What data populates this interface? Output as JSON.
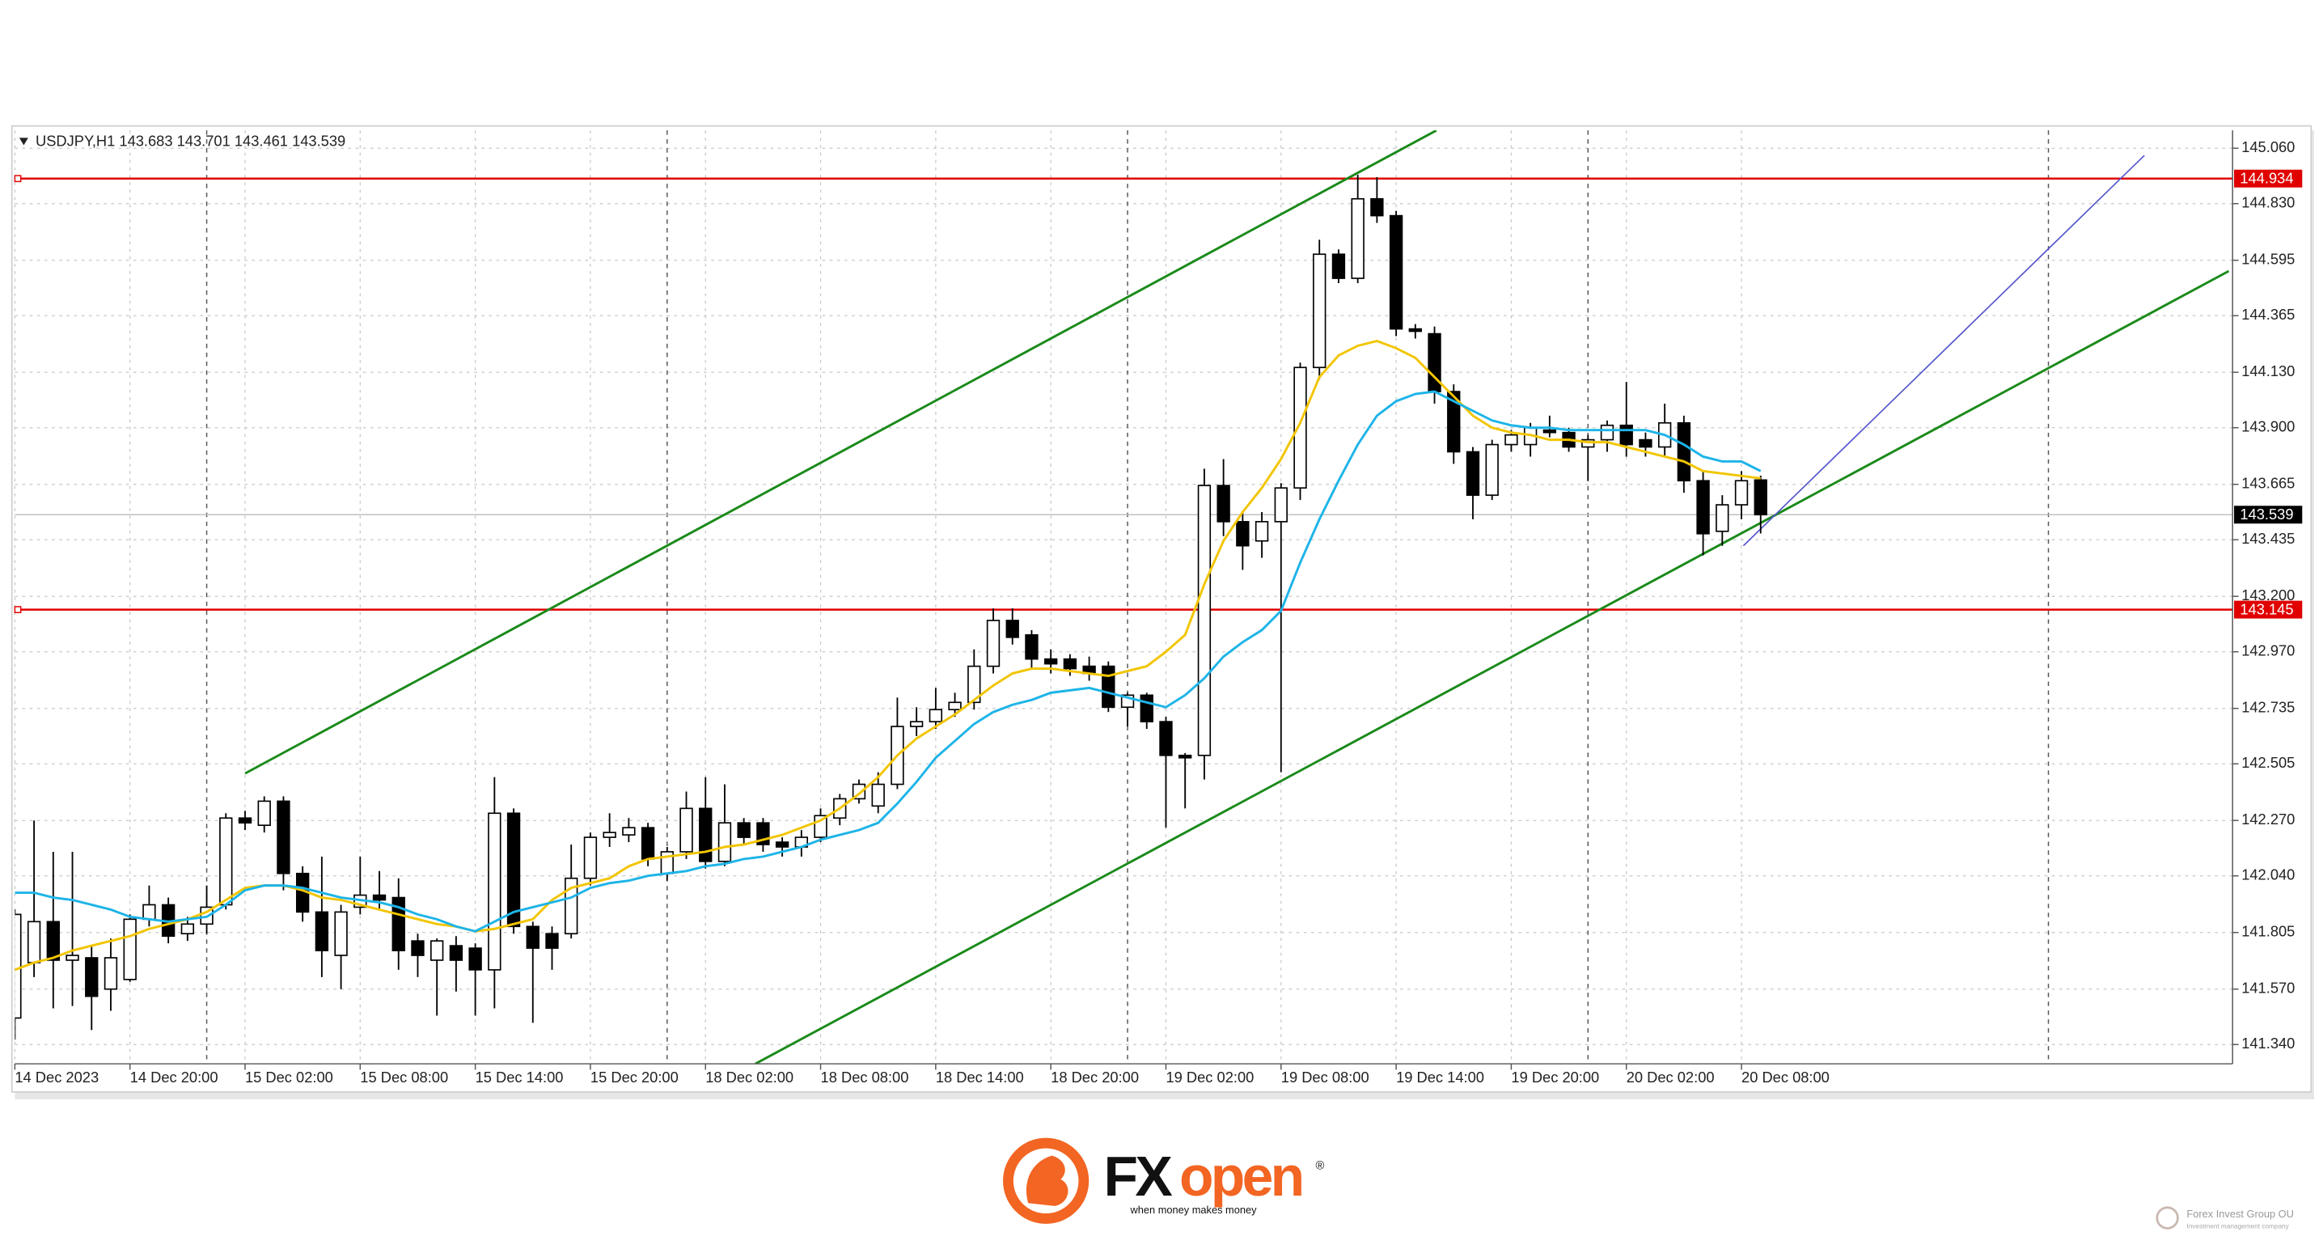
{
  "chart_data": {
    "type": "candlestick",
    "ohlc_header": "USDJPY,H1  143.683 143.701 143.461 143.539",
    "categories": [
      "14 Dec 2023",
      null,
      null,
      null,
      null,
      null,
      "14 Dec 20:00",
      null,
      null,
      null,
      null,
      null,
      "15 Dec 02:00",
      null,
      null,
      null,
      null,
      null,
      "15 Dec 08:00",
      null,
      null,
      null,
      null,
      null,
      "15 Dec 14:00",
      null,
      null,
      null,
      null,
      null,
      "15 Dec 20:00",
      null,
      null,
      null,
      null,
      null,
      "18 Dec 02:00",
      null,
      null,
      null,
      null,
      null,
      "18 Dec 08:00",
      null,
      null,
      null,
      null,
      null,
      "18 Dec 14:00",
      null,
      null,
      null,
      null,
      null,
      "18 Dec 20:00",
      null,
      null,
      null,
      null,
      null,
      "19 Dec 02:00",
      null,
      null,
      null,
      null,
      null,
      "19 Dec 08:00",
      null,
      null,
      null,
      null,
      null,
      "19 Dec 14:00",
      null,
      null,
      null,
      null,
      null,
      "19 Dec 20:00",
      null,
      null,
      null,
      null,
      null,
      "20 Dec 02:00",
      null,
      null,
      null,
      null,
      null,
      "20 Dec 08:00",
      null
    ],
    "open": [
      141.45,
      141.68,
      141.85,
      141.69,
      141.7,
      141.57,
      141.61,
      141.86,
      141.92,
      141.8,
      141.84,
      141.92,
      142.28,
      142.25,
      142.35,
      142.05,
      141.89,
      141.71,
      141.91,
      141.96,
      141.95,
      141.77,
      141.69,
      141.75,
      141.74,
      141.65,
      142.3,
      141.83,
      141.8,
      141.8,
      142.03,
      142.2,
      142.21,
      142.24,
      142.05,
      142.14,
      142.32,
      142.1,
      142.26,
      142.26,
      142.18,
      142.16,
      142.2,
      142.28,
      142.36,
      142.33,
      142.42,
      142.66,
      142.68,
      142.73,
      142.76,
      142.91,
      143.1,
      143.04,
      142.94,
      142.94,
      142.91,
      142.91,
      142.74,
      142.79,
      142.68,
      142.54,
      142.54,
      143.66,
      143.51,
      143.43,
      143.51,
      143.65,
      144.15,
      144.62,
      144.52,
      144.85,
      144.78,
      144.31,
      144.29,
      144.05,
      143.8,
      143.62,
      143.83,
      143.83,
      143.89,
      143.88,
      143.82,
      143.85,
      143.91,
      143.85,
      143.82,
      143.92,
      143.68,
      143.47,
      143.58,
      143.683
    ],
    "high": [
      141.9,
      142.27,
      142.14,
      142.14,
      141.75,
      141.78,
      141.88,
      142.0,
      141.95,
      141.87,
      142.0,
      142.3,
      142.31,
      142.37,
      142.37,
      142.08,
      142.12,
      141.92,
      142.12,
      142.06,
      142.03,
      141.8,
      141.78,
      141.79,
      141.76,
      142.45,
      142.32,
      141.85,
      141.83,
      142.17,
      142.22,
      142.3,
      142.28,
      142.26,
      142.16,
      142.39,
      142.45,
      142.42,
      142.28,
      142.28,
      142.2,
      142.23,
      142.32,
      142.38,
      142.44,
      142.47,
      142.78,
      142.74,
      142.82,
      142.8,
      142.98,
      143.15,
      143.15,
      143.06,
      142.98,
      142.96,
      142.95,
      142.93,
      142.8,
      142.8,
      142.7,
      142.55,
      143.73,
      143.77,
      143.55,
      143.55,
      143.67,
      144.17,
      144.68,
      144.64,
      144.95,
      144.94,
      144.8,
      144.33,
      144.32,
      144.08,
      143.82,
      143.85,
      143.89,
      143.92,
      143.95,
      143.9,
      143.87,
      143.93,
      144.09,
      143.88,
      144.0,
      143.95,
      143.72,
      143.62,
      143.72,
      143.701
    ],
    "low": [
      141.36,
      141.62,
      141.49,
      141.5,
      141.4,
      141.48,
      141.6,
      141.83,
      141.76,
      141.77,
      141.8,
      141.9,
      142.23,
      142.22,
      141.98,
      141.85,
      141.62,
      141.57,
      141.88,
      141.9,
      141.65,
      141.62,
      141.46,
      141.56,
      141.46,
      141.49,
      141.8,
      141.43,
      141.65,
      141.78,
      142.0,
      142.16,
      142.18,
      142.08,
      142.02,
      142.11,
      142.07,
      142.08,
      142.17,
      142.14,
      142.12,
      142.12,
      142.18,
      142.25,
      142.34,
      142.3,
      142.4,
      142.62,
      142.65,
      142.7,
      142.73,
      142.88,
      143.0,
      142.9,
      142.88,
      142.87,
      142.85,
      142.72,
      142.66,
      142.65,
      142.24,
      142.32,
      142.44,
      143.45,
      143.31,
      143.36,
      142.47,
      143.6,
      144.1,
      144.5,
      144.5,
      144.75,
      144.28,
      144.27,
      144.0,
      143.75,
      143.52,
      143.6,
      143.8,
      143.78,
      143.86,
      143.8,
      143.68,
      143.8,
      143.78,
      143.78,
      143.78,
      143.63,
      143.37,
      143.41,
      143.52,
      143.461
    ],
    "close": [
      141.88,
      141.85,
      141.69,
      141.71,
      141.54,
      141.7,
      141.86,
      141.92,
      141.79,
      141.84,
      141.91,
      142.28,
      142.26,
      142.35,
      142.05,
      141.89,
      141.73,
      141.89,
      141.96,
      141.94,
      141.73,
      141.71,
      141.77,
      141.69,
      141.65,
      142.3,
      141.83,
      141.74,
      141.74,
      142.03,
      142.2,
      142.22,
      142.24,
      142.11,
      142.14,
      142.32,
      142.1,
      142.26,
      142.2,
      142.17,
      142.16,
      142.2,
      142.29,
      142.36,
      142.42,
      142.42,
      142.66,
      142.68,
      142.73,
      142.76,
      142.91,
      143.1,
      143.03,
      142.94,
      142.92,
      142.9,
      142.88,
      142.74,
      142.79,
      142.68,
      142.54,
      142.53,
      143.66,
      143.51,
      143.41,
      143.51,
      143.65,
      144.15,
      144.62,
      144.52,
      144.85,
      144.78,
      144.31,
      144.3,
      144.05,
      143.8,
      143.62,
      143.83,
      143.87,
      143.9,
      143.88,
      143.82,
      143.85,
      143.91,
      143.83,
      143.82,
      143.92,
      143.68,
      143.46,
      143.58,
      143.68,
      143.539
    ],
    "up_color": "#ffffff",
    "down_color": "#000000",
    "moving_averages": [
      {
        "color": "#f2c500",
        "values": [
          141.65,
          141.68,
          141.7,
          141.73,
          141.75,
          141.77,
          141.79,
          141.82,
          141.84,
          141.86,
          141.89,
          141.94,
          141.99,
          142.0,
          142.0,
          141.98,
          141.95,
          141.94,
          141.92,
          141.9,
          141.88,
          141.86,
          141.84,
          141.83,
          141.81,
          141.82,
          141.84,
          141.86,
          141.94,
          141.99,
          142.01,
          142.03,
          142.08,
          142.11,
          142.12,
          142.13,
          142.14,
          142.16,
          142.17,
          142.19,
          142.21,
          142.24,
          142.27,
          142.32,
          142.38,
          142.45,
          142.54,
          142.61,
          142.66,
          142.71,
          142.77,
          142.83,
          142.88,
          142.9,
          142.9,
          142.89,
          142.88,
          142.87,
          142.89,
          142.91,
          142.97,
          143.04,
          143.25,
          143.43,
          143.55,
          143.65,
          143.77,
          143.92,
          144.11,
          144.2,
          144.24,
          144.26,
          144.23,
          144.19,
          144.11,
          144.03,
          143.95,
          143.9,
          143.88,
          143.87,
          143.85,
          143.85,
          143.84,
          143.84,
          143.82,
          143.8,
          143.78,
          143.76,
          143.72,
          143.71,
          143.7,
          143.69
        ]
      },
      {
        "color": "#1db4e8",
        "values": [
          141.97,
          141.97,
          141.95,
          141.94,
          141.92,
          141.9,
          141.87,
          141.86,
          141.85,
          141.86,
          141.87,
          141.92,
          141.98,
          142.0,
          142.0,
          141.99,
          141.97,
          141.95,
          141.94,
          141.93,
          141.91,
          141.88,
          141.86,
          141.83,
          141.81,
          141.85,
          141.89,
          141.91,
          141.93,
          141.95,
          141.99,
          142.01,
          142.02,
          142.04,
          142.05,
          142.06,
          142.08,
          142.09,
          142.11,
          142.12,
          142.14,
          142.16,
          142.19,
          142.21,
          142.23,
          142.26,
          142.34,
          142.43,
          142.53,
          142.6,
          142.67,
          142.72,
          142.75,
          142.77,
          142.8,
          142.81,
          142.82,
          142.8,
          142.78,
          142.76,
          142.74,
          142.79,
          142.86,
          142.95,
          143.01,
          143.06,
          143.14,
          143.34,
          143.52,
          143.68,
          143.83,
          143.95,
          144.01,
          144.04,
          144.05,
          144.01,
          143.97,
          143.93,
          143.91,
          143.9,
          143.9,
          143.89,
          143.89,
          143.89,
          143.89,
          143.89,
          143.87,
          143.83,
          143.78,
          143.76,
          143.76,
          143.72
        ]
      }
    ],
    "trend_lines": [
      {
        "color": "#1a8a1a",
        "x": [
          12,
          74.1
        ],
        "y": [
          142.465,
          145.134
        ]
      },
      {
        "color": "#1a8a1a",
        "x": [
          38.6,
          115.4
        ],
        "y": [
          141.26,
          144.55
        ]
      },
      {
        "color": "#5555cc",
        "x": [
          90.1,
          111
        ],
        "y": [
          143.41,
          145.03
        ]
      }
    ],
    "levels": [
      {
        "value": 144.934,
        "color": "#e00000"
      },
      {
        "value": 143.145,
        "color": "#e00000"
      }
    ],
    "current_price": 143.539,
    "separators": [
      10,
      34,
      58,
      82,
      106
    ],
    "xlim": [
      0,
      115.6
    ],
    "ylim": [
      141.26,
      145.134
    ],
    "yticks": [
      {
        "value": 145.06,
        "label": "145.060"
      },
      {
        "value": 144.83,
        "label": "144.830"
      },
      144.595,
      144.365,
      {
        "value": 144.13,
        "label": "144.130"
      },
      {
        "value": 143.9,
        "label": "143.900"
      },
      143.665,
      143.435,
      {
        "value": 143.2,
        "label": "143.200"
      },
      {
        "value": 142.97,
        "label": "142.970"
      },
      142.735,
      142.505,
      {
        "value": 142.27,
        "label": "142.270"
      },
      {
        "value": 142.04,
        "label": "142.040"
      },
      141.805,
      {
        "value": 141.57,
        "label": "141.570"
      },
      {
        "value": 141.34,
        "label": "141.340"
      }
    ],
    "grid": true
  },
  "footer": {
    "brand_fx": "FX",
    "brand_open": "open",
    "tagline": "when money makes money",
    "company": "Forex Invest Group OU",
    "company_sub": "Investment management company"
  }
}
